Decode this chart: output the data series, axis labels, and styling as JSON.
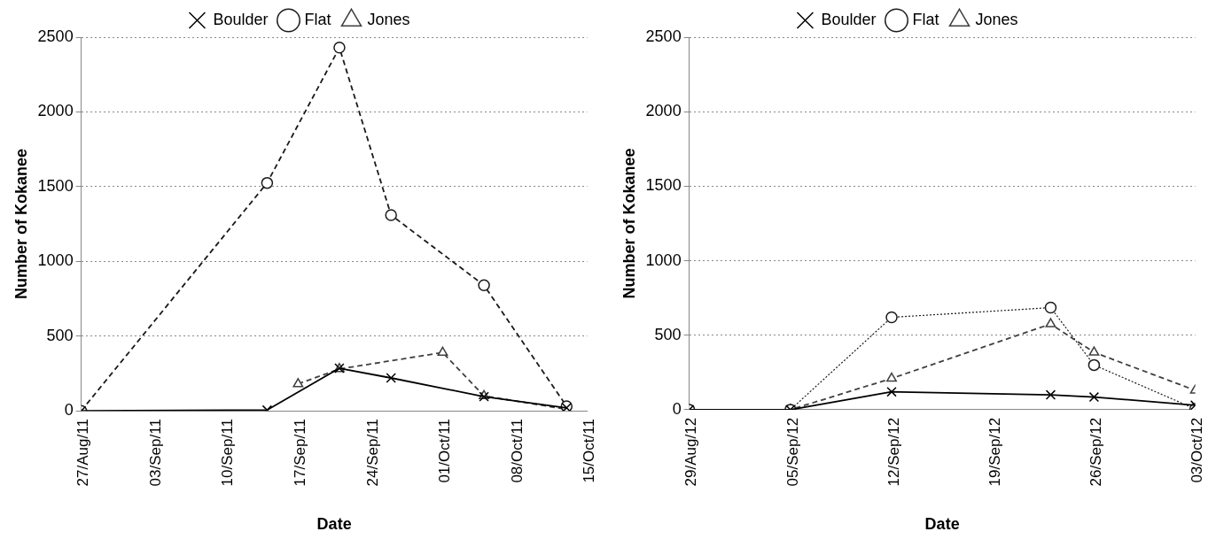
{
  "chart_data": [
    {
      "type": "line",
      "xlabel": "Date",
      "ylabel": "Number of Kokanee",
      "legend": "top",
      "grid": "y",
      "xlim": [
        "--08-27",
        "--10-15"
      ],
      "xticks": [
        {
          "value": "--08-27",
          "label": "27/Aug/11"
        },
        {
          "value": "--09-03",
          "label": "03/Sep/11"
        },
        {
          "value": "--09-10",
          "label": "10/Sep/11"
        },
        {
          "value": "--09-17",
          "label": "17/Sep/11"
        },
        {
          "value": "--09-24",
          "label": "24/Sep/11"
        },
        {
          "value": "--10-01",
          "label": "01/Oct/11"
        },
        {
          "value": "--10-08",
          "label": "08/Oct/11"
        },
        {
          "value": "--10-15",
          "label": "15/Oct/11"
        }
      ],
      "ylim": [
        0,
        2500
      ],
      "yticks": [
        0,
        500,
        1000,
        1500,
        2000,
        2500
      ],
      "series": [
        {
          "name": "Boulder",
          "color": "#000000",
          "marker": "cross",
          "line_style": "solid",
          "x": [
            "--08-27",
            "--09-14",
            "--09-21",
            "--09-26",
            "--10-05",
            "--10-13"
          ],
          "values": [
            0,
            5,
            285,
            220,
            95,
            20
          ]
        },
        {
          "name": "Flat",
          "color": "#1a1a1a",
          "marker": "circle",
          "line_style": "dashed",
          "x": [
            "--08-27",
            "--09-14",
            "--09-21",
            "--09-26",
            "--10-05",
            "--10-13"
          ],
          "values": [
            0,
            1525,
            2430,
            1310,
            840,
            30
          ]
        },
        {
          "name": "Jones",
          "color": "#404040",
          "marker": "triangle",
          "line_style": "dashed",
          "x": [
            "--09-17",
            "--09-21",
            "--10-01",
            "--10-05",
            "--10-13"
          ],
          "values": [
            180,
            280,
            390,
            100,
            10
          ]
        }
      ]
    },
    {
      "type": "line",
      "xlabel": "Date",
      "ylabel": "Number of Kokanee",
      "legend": "top",
      "grid": "y",
      "xlim": [
        "--08-29",
        "--10-03"
      ],
      "xticks": [
        {
          "value": "--08-29",
          "label": "29/Aug/12"
        },
        {
          "value": "--09-05",
          "label": "05/Sep/12"
        },
        {
          "value": "--09-12",
          "label": "12/Sep/12"
        },
        {
          "value": "--09-19",
          "label": "19/Sep/12"
        },
        {
          "value": "--09-26",
          "label": "26/Sep/12"
        },
        {
          "value": "--10-03",
          "label": "03/Oct/12"
        }
      ],
      "ylim": [
        0,
        2500
      ],
      "yticks": [
        0,
        500,
        1000,
        1500,
        2000,
        2500
      ],
      "series": [
        {
          "name": "Boulder",
          "color": "#000000",
          "marker": "cross",
          "line_style": "solid",
          "x": [
            "--08-29",
            "--09-05",
            "--09-12",
            "--09-23",
            "--09-26",
            "--10-03"
          ],
          "values": [
            0,
            0,
            120,
            100,
            85,
            30
          ]
        },
        {
          "name": "Flat",
          "color": "#1a1a1a",
          "marker": "circle",
          "line_style": "dotted",
          "x": [
            "--08-29",
            "--09-05",
            "--09-12",
            "--09-23",
            "--09-26",
            "--10-03"
          ],
          "values": [
            0,
            0,
            620,
            685,
            300,
            5
          ]
        },
        {
          "name": "Jones",
          "color": "#404040",
          "marker": "triangle",
          "line_style": "dashed",
          "x": [
            "--08-29",
            "--09-05",
            "--09-12",
            "--09-23",
            "--09-26",
            "--10-03"
          ],
          "values": [
            0,
            0,
            210,
            575,
            385,
            130
          ]
        }
      ]
    }
  ]
}
